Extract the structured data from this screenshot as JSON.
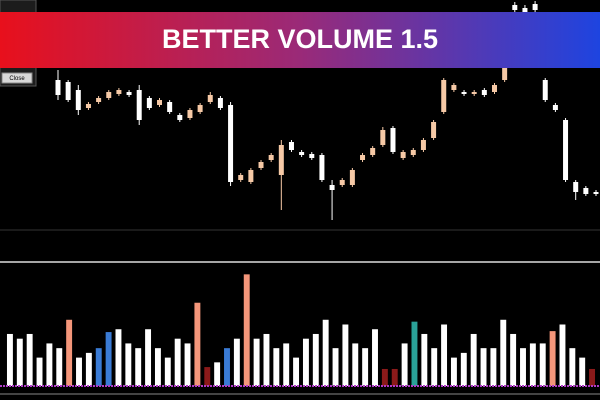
{
  "close_button": "Close",
  "chart_data": [
    {
      "type": "candlestick",
      "title": "BETTER VOLUME 1.5",
      "ylim": [
        0,
        230
      ],
      "up_color": "#f6c9a6",
      "down_color": "#ffffff",
      "open": [
        150,
        148,
        140,
        122,
        128,
        132,
        136,
        138,
        140,
        132,
        125,
        128,
        115,
        112,
        118,
        128,
        132,
        125,
        50,
        48,
        62,
        70,
        55,
        88,
        78,
        76,
        75,
        45,
        45,
        45,
        70,
        75,
        85,
        102,
        72,
        75,
        80,
        92,
        118,
        140,
        138,
        136,
        140,
        138,
        150,
        225,
        222,
        226,
        150,
        125,
        110,
        48,
        42,
        38
      ],
      "close": [
        135,
        130,
        120,
        126,
        132,
        138,
        140,
        135,
        110,
        122,
        130,
        118,
        110,
        120,
        125,
        135,
        122,
        48,
        55,
        60,
        68,
        75,
        85,
        80,
        75,
        72,
        50,
        40,
        50,
        60,
        75,
        82,
        100,
        78,
        78,
        80,
        90,
        108,
        150,
        145,
        136,
        138,
        135,
        145,
        165,
        220,
        218,
        220,
        130,
        120,
        50,
        38,
        36,
        36
      ],
      "high": [
        160,
        150,
        145,
        128,
        134,
        140,
        142,
        140,
        145,
        134,
        132,
        130,
        117,
        122,
        127,
        138,
        134,
        128,
        57,
        62,
        70,
        77,
        90,
        90,
        80,
        78,
        77,
        50,
        52,
        62,
        77,
        84,
        103,
        104,
        80,
        82,
        92,
        110,
        152,
        147,
        140,
        140,
        142,
        147,
        168,
        228,
        225,
        229,
        152,
        127,
        112,
        50,
        44,
        40
      ],
      "low": [
        130,
        128,
        115,
        120,
        126,
        130,
        134,
        133,
        105,
        120,
        123,
        116,
        108,
        110,
        116,
        126,
        120,
        44,
        48,
        46,
        60,
        68,
        20,
        78,
        73,
        70,
        48,
        10,
        43,
        43,
        68,
        73,
        83,
        76,
        70,
        73,
        78,
        90,
        116,
        138,
        134,
        134,
        133,
        136,
        148,
        218,
        216,
        218,
        128,
        118,
        48,
        30,
        34,
        34
      ]
    },
    {
      "type": "bar",
      "ylim": [
        0,
        130
      ],
      "values": [
        55,
        50,
        55,
        30,
        45,
        40,
        70,
        30,
        35,
        40,
        57,
        60,
        45,
        40,
        60,
        40,
        30,
        50,
        45,
        88,
        20,
        25,
        40,
        50,
        118,
        50,
        55,
        40,
        45,
        30,
        50,
        55,
        70,
        40,
        65,
        45,
        40,
        60,
        18,
        18,
        45,
        68,
        55,
        40,
        65,
        30,
        35,
        55,
        40,
        40,
        70,
        55,
        40,
        45,
        45,
        58,
        65,
        40,
        30,
        18
      ],
      "colors": [
        "#ffffff",
        "#ffffff",
        "#ffffff",
        "#ffffff",
        "#ffffff",
        "#ffffff",
        "#f4967a",
        "#ffffff",
        "#ffffff",
        "#3a7bd5",
        "#3a7bd5",
        "#ffffff",
        "#ffffff",
        "#ffffff",
        "#ffffff",
        "#ffffff",
        "#ffffff",
        "#ffffff",
        "#ffffff",
        "#f4967a",
        "#8b1a1a",
        "#ffffff",
        "#3a7bd5",
        "#ffffff",
        "#f4967a",
        "#ffffff",
        "#ffffff",
        "#ffffff",
        "#ffffff",
        "#ffffff",
        "#ffffff",
        "#ffffff",
        "#ffffff",
        "#ffffff",
        "#ffffff",
        "#ffffff",
        "#ffffff",
        "#ffffff",
        "#8b1a1a",
        "#8b1a1a",
        "#ffffff",
        "#2aa198",
        "#ffffff",
        "#ffffff",
        "#ffffff",
        "#ffffff",
        "#ffffff",
        "#ffffff",
        "#ffffff",
        "#ffffff",
        "#ffffff",
        "#ffffff",
        "#ffffff",
        "#ffffff",
        "#ffffff",
        "#f4967a",
        "#ffffff",
        "#ffffff",
        "#ffffff",
        "#8b1a1a"
      ]
    }
  ]
}
